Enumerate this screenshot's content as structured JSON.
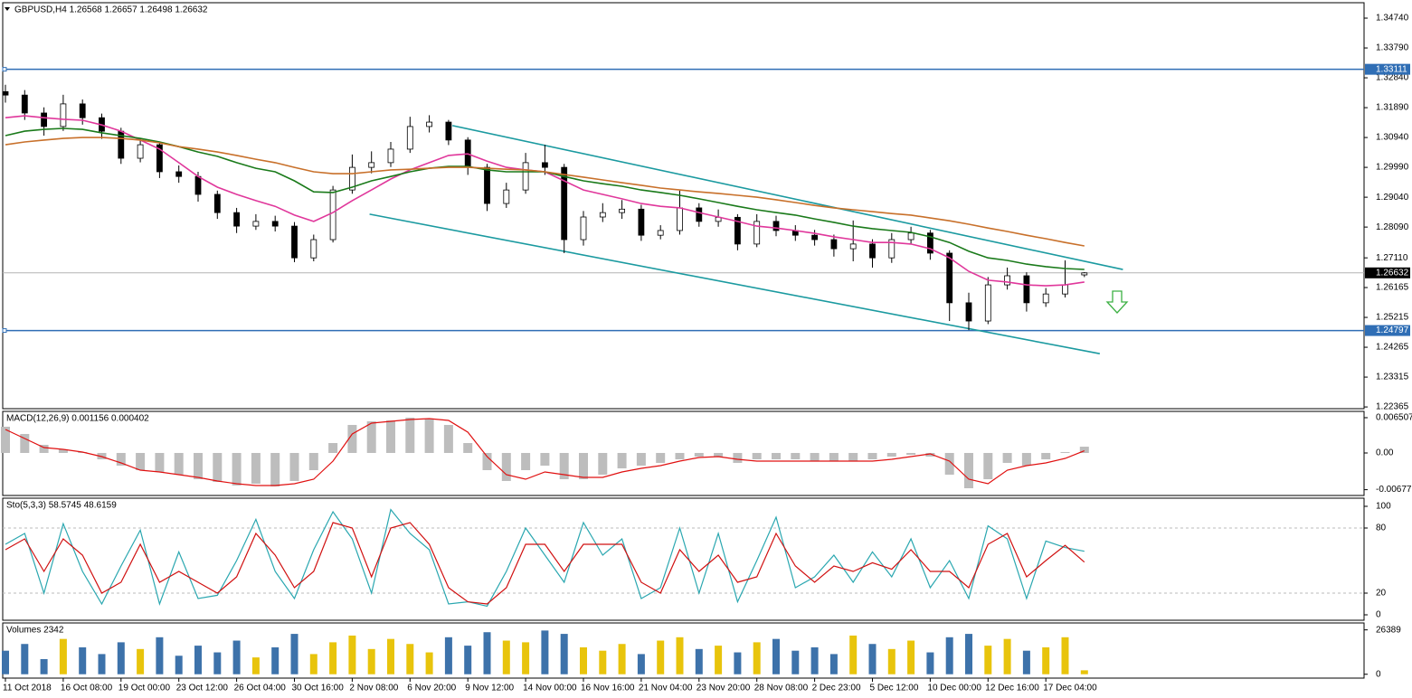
{
  "chart_data": [
    {
      "type": "candlestick",
      "title": "GBPUSD,H4  1.26568 1.26657 1.26498 1.26632",
      "categories": [
        "11 Oct 2018",
        null,
        null,
        "16 Oct 08:00",
        null,
        null,
        "19 Oct 00:00",
        null,
        null,
        "23 Oct 12:00",
        null,
        null,
        "26 Oct 04:00",
        null,
        null,
        "30 Oct 16:00",
        null,
        null,
        "2 Nov 08:00",
        null,
        null,
        "6 Nov 20:00",
        null,
        null,
        "9 Nov 12:00",
        null,
        null,
        "14 Nov 00:00",
        null,
        null,
        "16 Nov 16:00",
        null,
        null,
        "21 Nov 04:00",
        null,
        null,
        "23 Nov 20:00",
        null,
        null,
        "28 Nov 08:00",
        null,
        null,
        "2 Dec 23:00",
        null,
        null,
        "5 Dec 12:00",
        null,
        null,
        "10 Dec 00:00",
        null,
        null,
        "12 Dec 16:00",
        null,
        null,
        "17 Dec 04:00",
        null,
        null
      ],
      "open": [
        1.324,
        1.3229,
        1.3172,
        1.3129,
        1.3201,
        1.3157,
        1.3114,
        1.3028,
        1.3071,
        1.2985,
        1.297,
        1.2913,
        1.2855,
        1.2812,
        1.2827,
        1.2812,
        1.2711,
        1.2769,
        1.2927,
        1.2999,
        1.3014,
        1.3057,
        1.3129,
        1.3143,
        1.3086,
        1.2999,
        1.2884,
        1.2927,
        1.3014,
        1.2999,
        1.2769,
        1.2841,
        1.2855,
        1.2866,
        1.2783,
        1.2798,
        1.287,
        1.2827,
        1.284,
        1.2755,
        1.2827,
        1.2798,
        1.2783,
        1.2769,
        1.274,
        1.2755,
        1.2711,
        1.2769,
        1.279,
        1.2726,
        1.2568,
        1.251,
        1.2625,
        1.2654,
        1.2568,
        1.2596,
        1.26568
      ],
      "high": [
        1.3262,
        1.3245,
        1.319,
        1.323,
        1.3215,
        1.317,
        1.3125,
        1.309,
        1.308,
        1.3005,
        1.2985,
        1.2925,
        1.287,
        1.285,
        1.2845,
        1.2825,
        1.2785,
        1.294,
        1.304,
        1.305,
        1.308,
        1.316,
        1.3165,
        1.315,
        1.3095,
        1.301,
        1.295,
        1.3045,
        1.3071,
        1.301,
        1.286,
        1.2885,
        1.2895,
        1.288,
        1.2815,
        1.2925,
        1.2885,
        1.2865,
        1.285,
        1.285,
        1.2845,
        1.2815,
        1.28,
        1.2785,
        1.283,
        1.277,
        1.279,
        1.281,
        1.28,
        1.2735,
        1.26,
        1.265,
        1.268,
        1.2665,
        1.2615,
        1.2703,
        1.26657
      ],
      "low": [
        1.3205,
        1.315,
        1.31,
        1.3115,
        1.3135,
        1.309,
        1.301,
        1.3015,
        1.2965,
        1.295,
        1.289,
        1.2835,
        1.279,
        1.28,
        1.2795,
        1.2697,
        1.27,
        1.276,
        1.2915,
        1.298,
        1.3,
        1.3045,
        1.311,
        1.307,
        1.2975,
        1.286,
        1.287,
        1.2915,
        1.2975,
        1.2726,
        1.275,
        1.2825,
        1.2835,
        1.2765,
        1.277,
        1.2785,
        1.281,
        1.281,
        1.2735,
        1.2745,
        1.278,
        1.2765,
        1.275,
        1.2715,
        1.27,
        1.268,
        1.2695,
        1.2755,
        1.2705,
        1.251,
        1.2481,
        1.25,
        1.261,
        1.254,
        1.2555,
        1.2585,
        1.26498
      ],
      "close": [
        1.3229,
        1.3172,
        1.3129,
        1.3201,
        1.3157,
        1.3114,
        1.3028,
        1.3071,
        1.2985,
        1.297,
        1.2913,
        1.2855,
        1.2812,
        1.2827,
        1.2812,
        1.2711,
        1.2769,
        1.2927,
        1.2999,
        1.3014,
        1.3057,
        1.3129,
        1.3143,
        1.3086,
        1.2999,
        1.2884,
        1.2927,
        1.3014,
        1.2999,
        1.2769,
        1.2841,
        1.2855,
        1.2866,
        1.2783,
        1.2798,
        1.287,
        1.2827,
        1.284,
        1.2755,
        1.2827,
        1.2798,
        1.2783,
        1.2769,
        1.274,
        1.2755,
        1.2711,
        1.2769,
        1.279,
        1.2726,
        1.2568,
        1.251,
        1.2625,
        1.2654,
        1.2568,
        1.2596,
        1.2625,
        1.26632
      ],
      "up_color": "#ffffff",
      "down_color": "#000000",
      "moving_averages": [
        {
          "color": "#e0379b",
          "values": [
            1.3157,
            1.3163,
            1.3157,
            1.3152,
            1.3149,
            1.3134,
            1.3114,
            1.3086,
            1.3057,
            1.3014,
            1.297,
            1.2936,
            1.2913,
            1.2893,
            1.2875,
            1.2847,
            1.2827,
            1.2855,
            1.2893,
            1.2927,
            1.2962,
            1.2991,
            1.3014,
            1.3037,
            1.3042,
            1.3019,
            1.2999,
            1.2991,
            1.2985,
            1.2956,
            1.2927,
            1.2913,
            1.2899,
            1.2884,
            1.2875,
            1.287,
            1.2855,
            1.2841,
            1.2827,
            1.2812,
            1.2806,
            1.2798,
            1.2789,
            1.2778,
            1.2769,
            1.276,
            1.276,
            1.2755,
            1.274,
            1.2711,
            1.2668,
            1.264,
            1.2634,
            1.2625,
            1.2622,
            1.2625,
            1.2634
          ]
        },
        {
          "color": "#1a7a1a",
          "values": [
            1.31,
            1.3114,
            1.312,
            1.3123,
            1.312,
            1.3109,
            1.31,
            1.3091,
            1.308,
            1.3065,
            1.3048,
            1.3034,
            1.3014,
            1.2996,
            1.2985,
            1.2956,
            1.2921,
            1.2919,
            1.2936,
            1.2956,
            1.297,
            1.2985,
            1.2996,
            1.3002,
            1.3002,
            1.2991,
            1.2985,
            1.2985,
            1.2985,
            1.297,
            1.2956,
            1.2947,
            1.2939,
            1.2927,
            1.2919,
            1.291,
            1.2899,
            1.2887,
            1.2875,
            1.2864,
            1.2855,
            1.2847,
            1.2835,
            1.2824,
            1.2812,
            1.2804,
            1.2798,
            1.2792,
            1.2778,
            1.276,
            1.2732,
            1.2711,
            1.2703,
            1.2691,
            1.2683,
            1.2677,
            1.2674
          ]
        },
        {
          "color": "#c8702a",
          "values": [
            1.3071,
            1.308,
            1.3086,
            1.3091,
            1.3094,
            1.3094,
            1.3091,
            1.3086,
            1.3077,
            1.3065,
            1.3057,
            1.3048,
            1.3037,
            1.3025,
            1.3014,
            1.2999,
            1.2985,
            1.2979,
            1.2979,
            1.2985,
            1.2991,
            1.2993,
            1.2996,
            1.2999,
            1.2999,
            1.2996,
            1.2993,
            1.2991,
            1.2985,
            1.2976,
            1.2968,
            1.2959,
            1.295,
            1.2942,
            1.2933,
            1.2927,
            1.2921,
            1.2916,
            1.291,
            1.2904,
            1.2896,
            1.2887,
            1.2878,
            1.287,
            1.2864,
            1.2858,
            1.2852,
            1.2847,
            1.2838,
            1.2829,
            1.2818,
            1.2806,
            1.2795,
            1.2783,
            1.2772,
            1.276,
            1.2749
          ]
        }
      ],
      "channel": [
        {
          "color": "#1b9aa0",
          "x": [
            23.2,
            58.0
          ],
          "values": [
            1.3132,
            1.2674
          ]
        },
        {
          "color": "#1b9aa0",
          "x": [
            18.9,
            56.8
          ],
          "values": [
            1.285,
            1.2406
          ]
        }
      ],
      "hlines": [
        {
          "value": 1.33111,
          "color": "#2f6eb5"
        },
        {
          "value": 1.24797,
          "color": "#2f6eb5"
        }
      ],
      "price_line": {
        "value": 1.26632,
        "color": "#b4b4b4"
      },
      "ylim": [
        1.2231,
        1.3523
      ],
      "yticks": [
        {
          "value": 1.3474,
          "label": "1.34740"
        },
        {
          "value": 1.3379,
          "label": "1.33790"
        },
        {
          "value": 1.3284,
          "label": "1.32840"
        },
        {
          "value": 1.3189,
          "label": "1.31890"
        },
        {
          "value": 1.3094,
          "label": "1.30940"
        },
        {
          "value": 1.2999,
          "label": "1.29990"
        },
        {
          "value": 1.2904,
          "label": "1.29040"
        },
        {
          "value": 1.2809,
          "label": "1.28090"
        },
        {
          "value": 1.2711,
          "label": "1.27110"
        },
        1.26165,
        1.25215,
        1.24265,
        1.23315,
        1.22365
      ]
    },
    {
      "type": "macd",
      "title": "MACD(12,26,9) 0.001156 0.000402",
      "series": [
        {
          "kind": "bar",
          "color": "#bdbdbd",
          "values": [
            0.00484,
            0.0035,
            0.0015,
            0.00067,
            0.00017,
            -0.00117,
            -0.00234,
            -0.00317,
            -0.0035,
            -0.004,
            -0.00484,
            -0.00534,
            -0.006,
            -0.00567,
            -0.00617,
            -0.00517,
            -0.00317,
            0.00183,
            0.00517,
            0.00584,
            0.006,
            0.00651,
            0.00634,
            0.00517,
            0.00183,
            -0.00317,
            -0.00517,
            -0.00317,
            -0.00234,
            -0.00484,
            -0.00484,
            -0.004,
            -0.00284,
            -0.00234,
            -0.00183,
            -0.00117,
            -0.00067,
            -0.00067,
            -0.00183,
            -0.00117,
            -0.00117,
            -0.00117,
            -0.0015,
            -0.0015,
            -0.0015,
            -0.00117,
            -0.00067,
            -0.00033,
            -0.00067,
            -0.004,
            -0.00651,
            -0.00484,
            -0.00183,
            -0.00234,
            -0.00117,
            0.00017,
            0.001156
          ]
        },
        {
          "kind": "line",
          "color": "#e01010",
          "values": [
            0.00434,
            0.00267,
            0.001,
            0.00067,
            0.00017,
            -0.00067,
            -0.00183,
            -0.00317,
            -0.0035,
            -0.004,
            -0.0045,
            -0.00517,
            -0.00567,
            -0.006,
            -0.006,
            -0.00567,
            -0.00484,
            -0.0015,
            0.0035,
            0.0055,
            0.00584,
            0.00617,
            0.00634,
            0.006,
            0.00384,
            -0.00067,
            -0.004,
            -0.00484,
            -0.0035,
            -0.004,
            -0.0045,
            -0.0045,
            -0.0035,
            -0.00284,
            -0.00234,
            -0.0015,
            -0.00083,
            -0.00067,
            -0.00117,
            -0.0015,
            -0.0015,
            -0.0015,
            -0.0015,
            -0.0015,
            -0.0015,
            -0.0015,
            -0.00117,
            -0.00067,
            -0.00017,
            -0.0015,
            -0.00484,
            -0.00567,
            -0.00317,
            -0.00234,
            -0.00183,
            -0.001,
            0.000402
          ]
        }
      ],
      "ylim": [
        -0.00784,
        0.00767
      ],
      "yticks": [
        0.006507,
        {
          "value": 0,
          "label": "0.00"
        },
        -0.006772
      ]
    },
    {
      "type": "line",
      "title": "Sto(5,3,3) 58.5745 48.6159",
      "series": [
        {
          "color": "#2aa7b0",
          "values": [
            65,
            75,
            20,
            84,
            40,
            10,
            45,
            78,
            10,
            58,
            15,
            18,
            50,
            88,
            40,
            15,
            60,
            95,
            70,
            20,
            97,
            75,
            60,
            10,
            12,
            8,
            40,
            80,
            55,
            30,
            85,
            55,
            70,
            15,
            25,
            80,
            20,
            75,
            12,
            50,
            90,
            25,
            35,
            55,
            30,
            58,
            35,
            70,
            25,
            50,
            15,
            82,
            70,
            15,
            68,
            62,
            58.5745
          ]
        },
        {
          "color": "#d01010",
          "values": [
            60,
            70,
            40,
            70,
            55,
            20,
            30,
            65,
            30,
            40,
            30,
            20,
            35,
            75,
            55,
            25,
            40,
            85,
            80,
            35,
            80,
            85,
            65,
            25,
            12,
            10,
            25,
            65,
            65,
            40,
            65,
            65,
            65,
            30,
            20,
            60,
            40,
            55,
            30,
            35,
            75,
            45,
            30,
            45,
            40,
            48,
            42,
            60,
            40,
            40,
            25,
            65,
            75,
            35,
            50,
            64,
            48.6159
          ]
        }
      ],
      "dashed_levels": [
        80,
        20
      ],
      "ylim": [
        -5,
        107.5
      ],
      "yticks": [
        100,
        80,
        20,
        0
      ]
    },
    {
      "type": "bar",
      "title": "Volumes 2342",
      "up_color": "#e8c40c",
      "down_color": "#3d72aa",
      "values": [
        14000,
        18000,
        9000,
        21000,
        16000,
        12000,
        19000,
        15000,
        22000,
        11000,
        17000,
        13000,
        20000,
        10000,
        16000,
        24000,
        12000,
        19000,
        23000,
        15000,
        21000,
        18000,
        13000,
        22000,
        17000,
        25000,
        20000,
        19000,
        26000,
        24000,
        16000,
        14000,
        18000,
        12000,
        20000,
        22000,
        15000,
        17000,
        13000,
        19000,
        21000,
        14000,
        16000,
        12000,
        23000,
        18000,
        15000,
        20000,
        13000,
        22000,
        24000,
        17000,
        21000,
        14000,
        16000,
        22000,
        2342
      ],
      "ylim": [
        -2300,
        30500
      ],
      "yticks": [
        26389,
        0
      ]
    }
  ]
}
